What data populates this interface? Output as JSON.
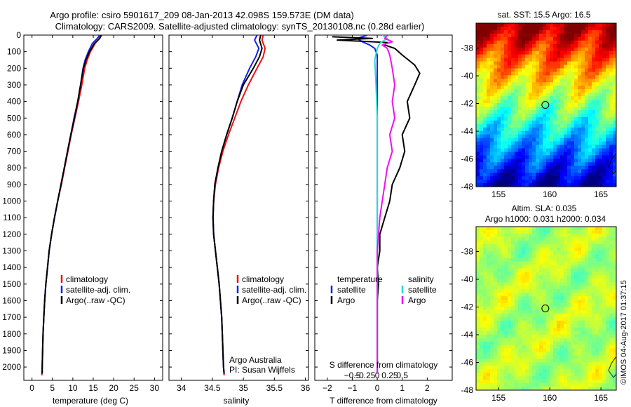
{
  "title": {
    "line1": "Argo profile: csiro 5901617_209 08-Jan-2013 42.098S 159.573E (DM data)",
    "line2": "Climatology: CARS2009. Satellite-adjusted climatology: synTS_20130108.nc (0.28d earlier)"
  },
  "credit": {
    "org": "Argo Australia",
    "pi": "PI: Susan Wijffels",
    "stamp": "©IMOS 04-Aug-2017 01:37:15"
  },
  "colors": {
    "climatology": "#ee1111",
    "satellite": "#1122ee",
    "argo": "#000000",
    "sal_satellite": "#22dddd",
    "sal_argo": "#ee11ee"
  },
  "chart_data": [
    {
      "type": "line",
      "panel": "temperature",
      "xlabel": "temperature (deg C)",
      "xticks": [
        0,
        5,
        10,
        15,
        20,
        25,
        30
      ],
      "xlim": [
        -2,
        32
      ],
      "ylim": [
        2080,
        0
      ],
      "yticks": [
        0,
        100,
        200,
        300,
        400,
        500,
        600,
        700,
        800,
        900,
        1000,
        1100,
        1200,
        1300,
        1400,
        1500,
        1600,
        1700,
        1800,
        1900,
        2000
      ],
      "legend": [
        "climatology",
        "satellite-adj. clim.",
        "Argo(..raw -QC)"
      ],
      "series": [
        {
          "name": "climatology",
          "color_key": "climatology",
          "points": [
            [
              16.8,
              0
            ],
            [
              16.5,
              20
            ],
            [
              15.5,
              50
            ],
            [
              14.3,
              100
            ],
            [
              13.5,
              150
            ],
            [
              12.9,
              200
            ],
            [
              12.2,
              300
            ],
            [
              11.4,
              400
            ],
            [
              10.5,
              500
            ],
            [
              9.6,
              600
            ],
            [
              8.8,
              700
            ],
            [
              8.0,
              800
            ],
            [
              7.2,
              900
            ],
            [
              6.3,
              1000
            ],
            [
              5.5,
              1100
            ],
            [
              4.8,
              1200
            ],
            [
              4.2,
              1300
            ],
            [
              3.8,
              1400
            ],
            [
              3.4,
              1500
            ],
            [
              3.1,
              1600
            ],
            [
              2.9,
              1700
            ],
            [
              2.7,
              1800
            ],
            [
              2.6,
              1900
            ],
            [
              2.5,
              2000
            ],
            [
              2.4,
              2050
            ]
          ]
        },
        {
          "name": "satellite-adj. clim.",
          "color_key": "satellite",
          "points": [
            [
              16.6,
              0
            ],
            [
              16.0,
              20
            ],
            [
              14.8,
              50
            ],
            [
              13.8,
              100
            ],
            [
              13.0,
              150
            ],
            [
              12.5,
              200
            ],
            [
              11.9,
              300
            ],
            [
              11.2,
              400
            ],
            [
              10.3,
              500
            ],
            [
              9.5,
              600
            ],
            [
              8.7,
              700
            ],
            [
              7.9,
              800
            ],
            [
              7.1,
              900
            ],
            [
              6.3,
              1000
            ],
            [
              5.5,
              1100
            ],
            [
              4.8,
              1200
            ],
            [
              4.2,
              1300
            ],
            [
              3.8,
              1400
            ],
            [
              3.4,
              1500
            ],
            [
              3.1,
              1600
            ],
            [
              2.9,
              1700
            ],
            [
              2.7,
              1800
            ],
            [
              2.6,
              1900
            ],
            [
              2.5,
              2000
            ],
            [
              2.5,
              2040
            ]
          ]
        },
        {
          "name": "Argo(..raw -QC)",
          "color_key": "argo",
          "points": [
            [
              17.0,
              0
            ],
            [
              16.6,
              20
            ],
            [
              15.3,
              50
            ],
            [
              14.1,
              100
            ],
            [
              13.2,
              150
            ],
            [
              12.6,
              200
            ],
            [
              11.9,
              300
            ],
            [
              11.2,
              400
            ],
            [
              10.4,
              500
            ],
            [
              9.5,
              600
            ],
            [
              8.7,
              700
            ],
            [
              7.9,
              800
            ],
            [
              7.1,
              900
            ],
            [
              6.3,
              1000
            ],
            [
              5.5,
              1100
            ],
            [
              4.8,
              1200
            ],
            [
              4.2,
              1300
            ],
            [
              3.8,
              1400
            ],
            [
              3.4,
              1500
            ],
            [
              3.1,
              1600
            ],
            [
              2.9,
              1700
            ],
            [
              2.7,
              1800
            ],
            [
              2.6,
              1900
            ],
            [
              2.5,
              2000
            ],
            [
              2.5,
              2040
            ]
          ]
        }
      ]
    },
    {
      "type": "line",
      "panel": "salinity",
      "xlabel": "salinity",
      "xticks": [
        34,
        34.5,
        35,
        35.5,
        36
      ],
      "xtick_labels": [
        "34",
        "34.5",
        "35",
        "35.5",
        "36"
      ],
      "xlim": [
        33.8,
        36.05
      ],
      "ylim": [
        2080,
        0
      ],
      "legend": [
        "climatology",
        "satellite-adj. clim.",
        "Argo(..raw -QC)"
      ],
      "series": [
        {
          "name": "climatology",
          "color_key": "climatology",
          "points": [
            [
              35.32,
              0
            ],
            [
              35.3,
              30
            ],
            [
              35.35,
              80
            ],
            [
              35.32,
              130
            ],
            [
              35.22,
              200
            ],
            [
              35.08,
              300
            ],
            [
              34.96,
              400
            ],
            [
              34.86,
              500
            ],
            [
              34.76,
              600
            ],
            [
              34.67,
              700
            ],
            [
              34.6,
              800
            ],
            [
              34.55,
              900
            ],
            [
              34.52,
              1000
            ],
            [
              34.51,
              1100
            ],
            [
              34.52,
              1200
            ],
            [
              34.55,
              1300
            ],
            [
              34.58,
              1400
            ],
            [
              34.61,
              1500
            ],
            [
              34.63,
              1600
            ],
            [
              34.65,
              1700
            ],
            [
              34.66,
              1800
            ],
            [
              34.67,
              1900
            ],
            [
              34.68,
              2000
            ],
            [
              34.69,
              2050
            ]
          ]
        },
        {
          "name": "satellite-adj. clim.",
          "color_key": "satellite",
          "points": [
            [
              35.22,
              0
            ],
            [
              35.18,
              30
            ],
            [
              35.25,
              80
            ],
            [
              35.2,
              130
            ],
            [
              35.1,
              200
            ],
            [
              34.98,
              300
            ],
            [
              34.9,
              400
            ],
            [
              34.82,
              500
            ],
            [
              34.73,
              600
            ],
            [
              34.65,
              700
            ],
            [
              34.59,
              800
            ],
            [
              34.54,
              900
            ],
            [
              34.52,
              1000
            ],
            [
              34.51,
              1100
            ],
            [
              34.52,
              1200
            ],
            [
              34.55,
              1300
            ],
            [
              34.58,
              1400
            ],
            [
              34.61,
              1500
            ],
            [
              34.63,
              1600
            ],
            [
              34.65,
              1700
            ],
            [
              34.66,
              1800
            ],
            [
              34.67,
              1900
            ],
            [
              34.68,
              2000
            ],
            [
              34.69,
              2040
            ]
          ]
        },
        {
          "name": "Argo(..raw -QC)",
          "color_key": "argo",
          "points": [
            [
              35.28,
              0
            ],
            [
              35.26,
              30
            ],
            [
              35.3,
              80
            ],
            [
              35.26,
              130
            ],
            [
              35.16,
              200
            ],
            [
              35.0,
              300
            ],
            [
              34.9,
              400
            ],
            [
              34.82,
              500
            ],
            [
              34.73,
              600
            ],
            [
              34.65,
              700
            ],
            [
              34.59,
              800
            ],
            [
              34.54,
              900
            ],
            [
              34.52,
              1000
            ],
            [
              34.51,
              1100
            ],
            [
              34.52,
              1200
            ],
            [
              34.55,
              1300
            ],
            [
              34.58,
              1400
            ],
            [
              34.61,
              1500
            ],
            [
              34.63,
              1600
            ],
            [
              34.65,
              1700
            ],
            [
              34.66,
              1800
            ],
            [
              34.67,
              1900
            ],
            [
              34.68,
              2000
            ],
            [
              34.69,
              2040
            ]
          ]
        }
      ]
    },
    {
      "type": "line",
      "panel": "difference",
      "xlabel": "T difference from climatology",
      "xlabel2": "S difference from climatology",
      "xticks": [
        -2,
        -1,
        0,
        1,
        2
      ],
      "xtick_labels": [
        "−2",
        "−1",
        "0",
        "1",
        "2"
      ],
      "xticks_top": [
        -1.0,
        -0.5,
        0,
        0.5,
        1.0
      ],
      "xtick_labels_top": [
        "−0.5",
        "−0.25",
        "0",
        "0.25",
        "0.5"
      ],
      "xlim": [
        -2.5,
        3.0
      ],
      "ylim": [
        2080,
        0
      ],
      "legend_temperature": {
        "title": "temperature",
        "items": [
          "satellite",
          "Argo"
        ]
      },
      "legend_salinity": {
        "title": "salinity",
        "items": [
          "satellite",
          "Argo"
        ]
      },
      "series": [
        {
          "name": "satellite",
          "group": "temperature",
          "color_key": "satellite",
          "points": [
            [
              -0.4,
              0
            ],
            [
              -0.8,
              20
            ],
            [
              -0.6,
              40
            ],
            [
              -0.3,
              60
            ],
            [
              -0.1,
              80
            ],
            [
              0.0,
              120
            ],
            [
              0.0,
              200
            ],
            [
              0.0,
              400
            ],
            [
              0.0,
              600
            ],
            [
              0.0,
              900
            ],
            [
              0.0,
              1200
            ],
            [
              0.0,
              1500
            ],
            [
              0.0,
              1800
            ],
            [
              0.0,
              2040
            ]
          ]
        },
        {
          "name": "Argo",
          "group": "temperature",
          "color_key": "argo",
          "points": [
            [
              -1.8,
              10
            ],
            [
              -0.2,
              20
            ],
            [
              -1.6,
              30
            ],
            [
              0.4,
              45
            ],
            [
              0.3,
              60
            ],
            [
              0.7,
              80
            ],
            [
              1.0,
              120
            ],
            [
              1.5,
              180
            ],
            [
              1.7,
              230
            ],
            [
              1.5,
              300
            ],
            [
              1.2,
              400
            ],
            [
              1.3,
              500
            ],
            [
              1.0,
              600
            ],
            [
              1.1,
              700
            ],
            [
              0.9,
              800
            ],
            [
              0.6,
              900
            ],
            [
              0.5,
              1000
            ],
            [
              0.3,
              1100
            ],
            [
              0.1,
              1200
            ],
            [
              0.1,
              1300
            ],
            [
              0.0,
              1400
            ],
            [
              0.05,
              1500
            ],
            [
              0.0,
              1600
            ],
            [
              0.0,
              1800
            ],
            [
              0.0,
              2040
            ]
          ]
        },
        {
          "name": "satellite",
          "group": "salinity",
          "color_key": "sal_satellite",
          "points": [
            [
              0.2,
              0
            ],
            [
              0.4,
              20
            ],
            [
              0.1,
              50
            ],
            [
              0.0,
              80
            ],
            [
              -0.1,
              150
            ],
            [
              -0.05,
              300
            ],
            [
              0.0,
              500
            ],
            [
              0.0,
              800
            ],
            [
              0.0,
              1200
            ],
            [
              0.0,
              1600
            ],
            [
              0.0,
              2040
            ]
          ]
        },
        {
          "name": "Argo",
          "group": "salinity",
          "color_key": "sal_argo",
          "points": [
            [
              0.4,
              0
            ],
            [
              0.3,
              20
            ],
            [
              0.6,
              40
            ],
            [
              0.2,
              60
            ],
            [
              0.4,
              80
            ],
            [
              0.5,
              120
            ],
            [
              0.6,
              200
            ],
            [
              0.7,
              300
            ],
            [
              0.6,
              400
            ],
            [
              0.7,
              500
            ],
            [
              0.5,
              600
            ],
            [
              0.6,
              700
            ],
            [
              0.4,
              800
            ],
            [
              0.3,
              900
            ],
            [
              0.2,
              1000
            ],
            [
              0.1,
              1100
            ],
            [
              0.05,
              1200
            ],
            [
              0.0,
              1300
            ],
            [
              0.0,
              1600
            ],
            [
              0.0,
              2040
            ]
          ]
        }
      ]
    },
    {
      "type": "heatmap",
      "panel": "sst-map",
      "title": "sat. SST: 15.5 Argo: 16.5",
      "xticks": [
        155,
        160,
        165
      ],
      "xlim": [
        152.8,
        166.5
      ],
      "yticks": [
        -38,
        -40,
        -42,
        -44,
        -46,
        -48
      ],
      "ylim": [
        -48,
        -36.2
      ],
      "marker": [
        159.57,
        -42.1
      ]
    },
    {
      "type": "heatmap",
      "panel": "sla-map",
      "title_line1": "Altim. SLA: 0.035",
      "title_line2": "Argo h1000: 0.031 h2000: 0.034",
      "xticks": [
        155,
        160,
        165
      ],
      "xlim": [
        152.8,
        166.5
      ],
      "yticks": [
        -38,
        -40,
        -42,
        -44,
        -46,
        -48
      ],
      "ylim": [
        -48,
        -36.2
      ],
      "marker": [
        159.57,
        -42.1
      ]
    }
  ]
}
